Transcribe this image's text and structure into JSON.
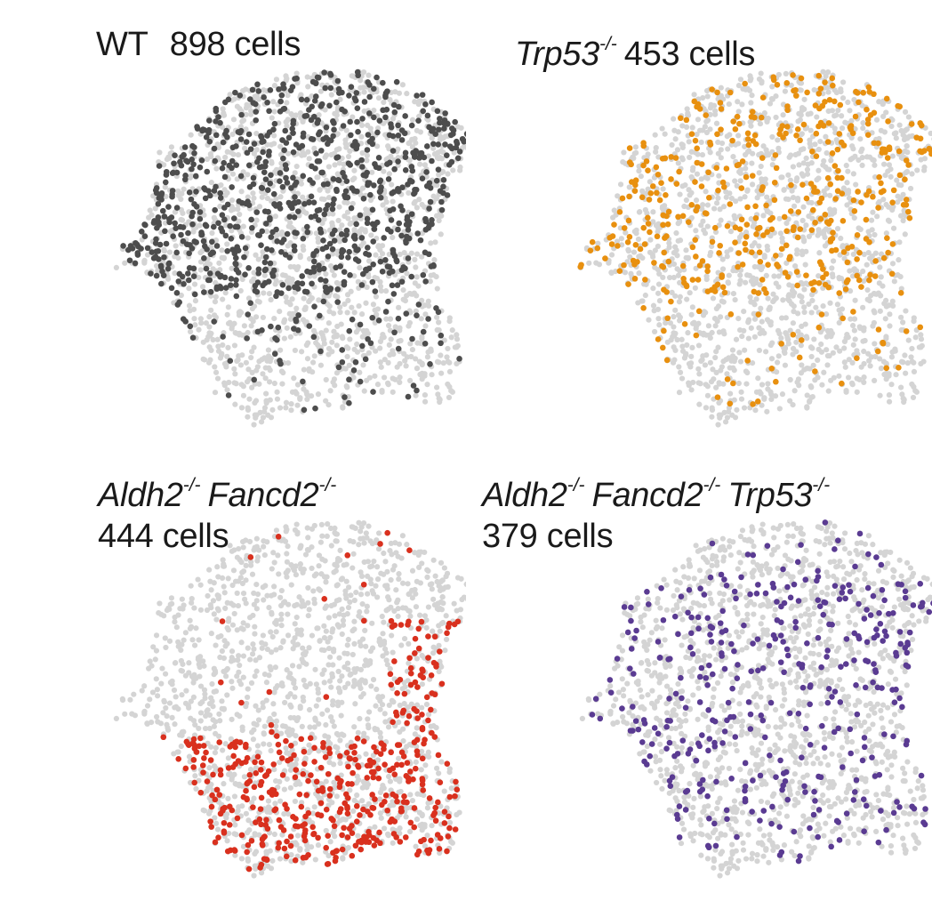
{
  "chart_data": {
    "type": "scatter",
    "description_note": "UMAP of single cells; each panel highlights cells of one genotype over the pooled background",
    "background_color": "#d4d4d4",
    "panels": [
      {
        "id": "wt",
        "title_line1": [
          {
            "text": "WT",
            "italic": false
          }
        ],
        "title_line2": [],
        "cells_label": "898 cells",
        "highlight_color": "#4d4d4d",
        "highlight_region": "upper",
        "n_cells": 898
      },
      {
        "id": "trp53",
        "title_line1": [
          {
            "text": "Trp53",
            "italic": true,
            "sup": "-/-"
          }
        ],
        "title_line2": [],
        "cells_label": "453 cells",
        "highlight_color": "#e8900f",
        "highlight_region": "upper",
        "n_cells": 453
      },
      {
        "id": "aldh2_fancd2",
        "title_line1": [
          {
            "text": "Aldh2",
            "italic": true,
            "sup": "-/-"
          },
          {
            "text": "Fancd2",
            "italic": true,
            "sup": "-/-"
          }
        ],
        "title_line2": [],
        "cells_label": "444 cells",
        "highlight_color": "#d9301e",
        "highlight_region": "lower",
        "n_cells": 444
      },
      {
        "id": "aldh2_fancd2_trp53",
        "title_line1": [
          {
            "text": "Aldh2",
            "italic": true,
            "sup": "-/-"
          },
          {
            "text": "Fancd2",
            "italic": true,
            "sup": "-/-"
          },
          {
            "text": "Trp53",
            "italic": true,
            "sup": "-/-"
          }
        ],
        "title_line2": [],
        "cells_label": "379 cells",
        "highlight_color": "#5a3b92",
        "highlight_region": "spread",
        "n_cells": 379
      }
    ]
  }
}
